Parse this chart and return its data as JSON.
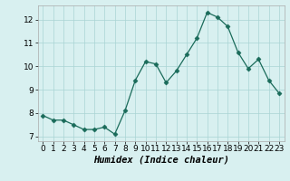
{
  "x": [
    0,
    1,
    2,
    3,
    4,
    5,
    6,
    7,
    8,
    9,
    10,
    11,
    12,
    13,
    14,
    15,
    16,
    17,
    18,
    19,
    20,
    21,
    22,
    23
  ],
  "y": [
    7.9,
    7.7,
    7.7,
    7.5,
    7.3,
    7.3,
    7.4,
    7.1,
    8.1,
    9.4,
    10.2,
    10.1,
    9.3,
    9.8,
    10.5,
    11.2,
    12.3,
    12.1,
    11.7,
    10.6,
    9.9,
    10.3,
    9.4,
    8.85
  ],
  "line_color": "#1a6b5a",
  "marker": "D",
  "marker_size": 2.5,
  "bg_color": "#d8f0f0",
  "grid_color": "#aad4d4",
  "xlabel": "Humidex (Indice chaleur)",
  "xlabel_fontsize": 7.5,
  "xlim": [
    -0.5,
    23.5
  ],
  "ylim": [
    6.8,
    12.6
  ],
  "yticks": [
    7,
    8,
    9,
    10,
    11,
    12
  ],
  "xticks": [
    0,
    1,
    2,
    3,
    4,
    5,
    6,
    7,
    8,
    9,
    10,
    11,
    12,
    13,
    14,
    15,
    16,
    17,
    18,
    19,
    20,
    21,
    22,
    23
  ],
  "tick_fontsize": 6.5
}
